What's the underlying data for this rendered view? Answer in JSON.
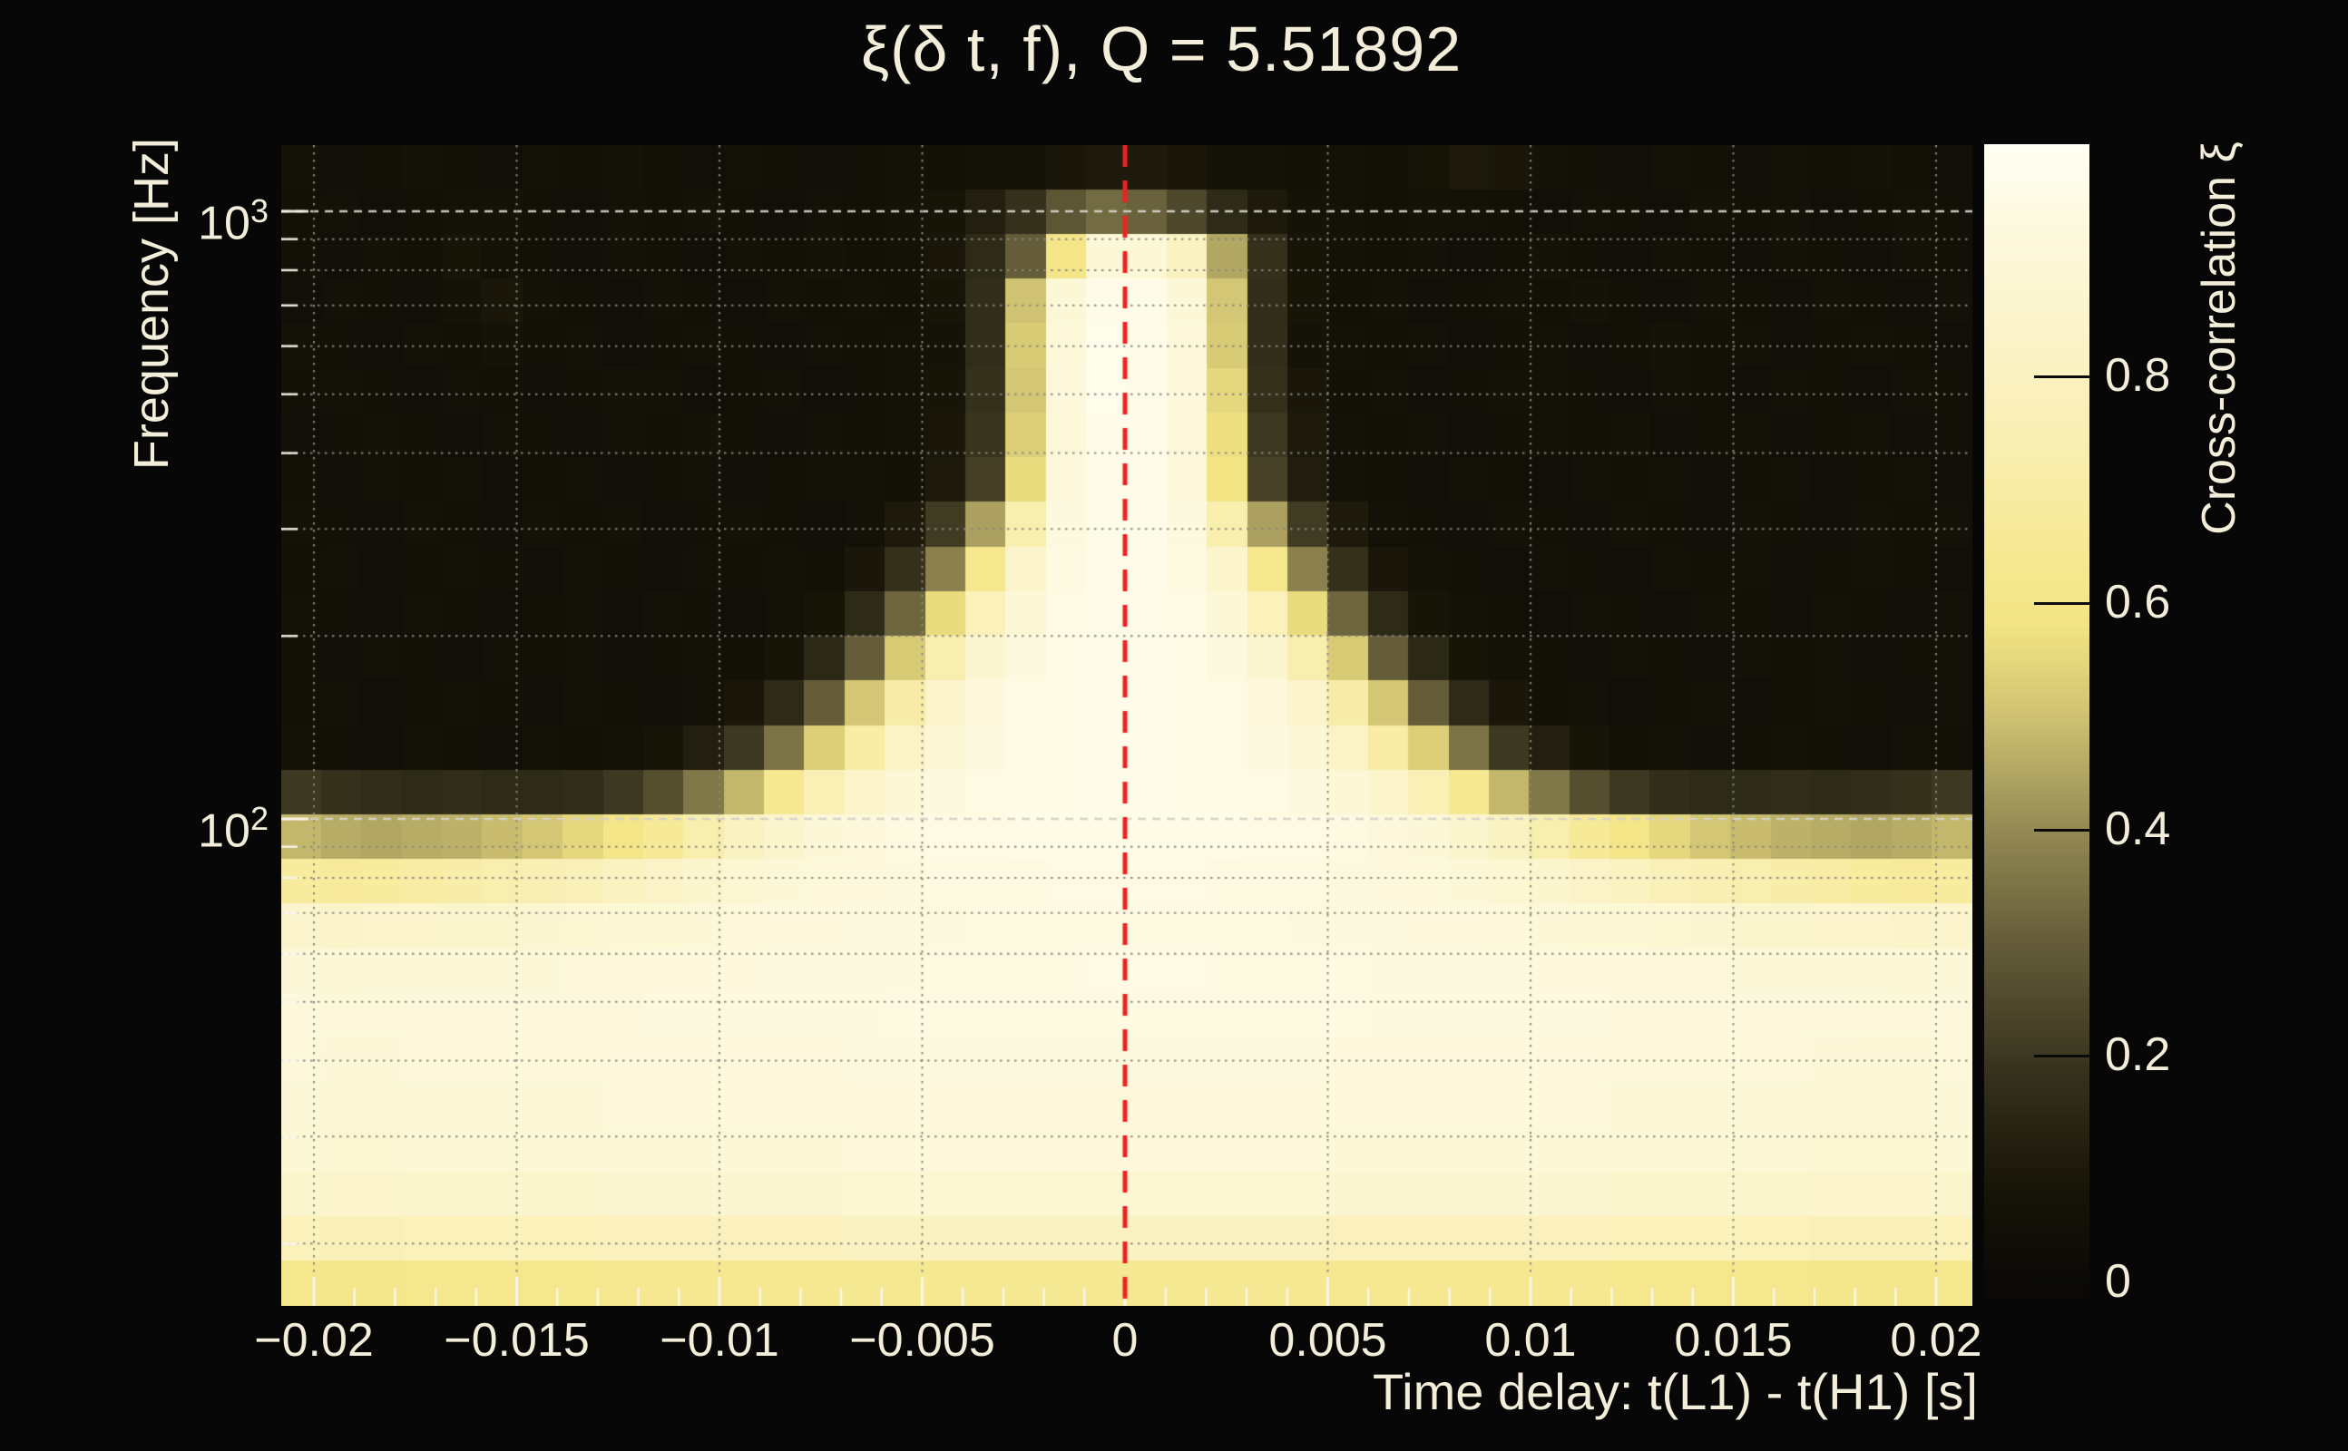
{
  "title": "ξ(δ t, f), Q = 5.51892",
  "style": {
    "background": "#070707",
    "text_color": "#f3eeda",
    "zero_line_color": "#ee2222",
    "grid_minor_color": "rgba(138,136,125,0.95)",
    "grid_major_color": "rgba(212,210,198,0.95)",
    "tick_color": "rgba(250,247,235,0.95)",
    "colorbar_tick_color": "#0a0a08"
  },
  "axes": {
    "x": {
      "title": "Time delay: t(L1) - t(H1) [s]",
      "range": [
        -0.0209,
        0.0209
      ],
      "minor_step": 0.001,
      "major_step": 0.005,
      "ticks": [
        {
          "v": -0.02,
          "label": "−0.02"
        },
        {
          "v": -0.015,
          "label": "−0.015"
        },
        {
          "v": -0.01,
          "label": "−0.01"
        },
        {
          "v": -0.005,
          "label": "−0.005"
        },
        {
          "v": 0,
          "label": "0"
        },
        {
          "v": 0.005,
          "label": "0.005"
        },
        {
          "v": 0.01,
          "label": "0.01"
        },
        {
          "v": 0.015,
          "label": "0.015"
        },
        {
          "v": 0.02,
          "label": "0.02"
        }
      ]
    },
    "y": {
      "title": "Frequency [Hz]",
      "scale": "log",
      "range": [
        15.8,
        1286
      ],
      "ticks": [
        {
          "v": 1000,
          "base": "10",
          "exp": "3"
        },
        {
          "v": 100,
          "base": "10",
          "exp": "2"
        }
      ]
    },
    "z": {
      "title": "Cross-correlation ξ",
      "range": [
        -0.015,
        1.004
      ],
      "ticks": [
        {
          "v": 0.8,
          "label": "0.8"
        },
        {
          "v": 0.6,
          "label": "0.6"
        },
        {
          "v": 0.4,
          "label": "0.4"
        },
        {
          "v": 0.2,
          "label": "0.2"
        },
        {
          "v": 0,
          "label": "0"
        }
      ]
    }
  },
  "chart_data": {
    "type": "heatmap",
    "title": "ξ(δ t, f), Q = 5.51892",
    "Q": 5.51892,
    "xlabel": "Time delay: t(L1) - t(H1) [s]",
    "ylabel": "Frequency [Hz]",
    "zlabel": "Cross-correlation ξ",
    "x_range_s": [
      -0.0209,
      0.0209
    ],
    "y_range_hz": [
      15.8,
      1286
    ],
    "y_scale": "log",
    "z_range": [
      -0.015,
      1.004
    ],
    "zero_line_x": 0,
    "n_cols": 42,
    "n_rows": 26,
    "colormap": [
      [
        0.0,
        "#0a0906"
      ],
      [
        0.08,
        "#171408"
      ],
      [
        0.18,
        "#34301c"
      ],
      [
        0.3,
        "#655d39"
      ],
      [
        0.4,
        "#948a54"
      ],
      [
        0.5,
        "#cfc272"
      ],
      [
        0.58,
        "#f2e483"
      ],
      [
        0.65,
        "#f6e995"
      ],
      [
        0.75,
        "#f9efb4"
      ],
      [
        0.85,
        "#fbf4cc"
      ],
      [
        0.93,
        "#fdf9de"
      ],
      [
        1.0,
        "#fffef2"
      ]
    ],
    "values": [
      [
        0.06,
        0.04,
        0.05,
        0.07,
        0.05,
        0.04,
        0.06,
        0.05,
        0.07,
        0.05,
        0.04,
        0.06,
        0.05,
        0.04,
        0.05,
        0.06,
        0.05,
        0.06,
        0.07,
        0.09,
        0.1,
        0.1,
        0.09,
        0.07,
        0.06,
        0.05,
        0.06,
        0.05,
        0.08,
        0.1,
        0.09,
        0.07,
        0.05,
        0.04,
        0.06,
        0.05,
        0.04,
        0.06,
        0.05,
        0.07,
        0.05,
        0.04
      ],
      [
        0.05,
        0.06,
        0.04,
        0.05,
        0.06,
        0.07,
        0.05,
        0.04,
        0.06,
        0.05,
        0.07,
        0.05,
        0.04,
        0.06,
        0.05,
        0.07,
        0.08,
        0.12,
        0.18,
        0.28,
        0.33,
        0.31,
        0.24,
        0.16,
        0.1,
        0.07,
        0.06,
        0.05,
        0.07,
        0.06,
        0.05,
        0.04,
        0.06,
        0.05,
        0.04,
        0.07,
        0.05,
        0.06,
        0.04,
        0.05,
        0.06,
        0.05
      ],
      [
        0.05,
        0.04,
        0.06,
        0.05,
        0.08,
        0.06,
        0.05,
        0.04,
        0.06,
        0.05,
        0.04,
        0.06,
        0.05,
        0.07,
        0.05,
        0.06,
        0.09,
        0.16,
        0.3,
        0.6,
        0.9,
        0.89,
        0.8,
        0.45,
        0.18,
        0.08,
        0.06,
        0.05,
        0.06,
        0.04,
        0.05,
        0.07,
        0.05,
        0.04,
        0.06,
        0.05,
        0.04,
        0.06,
        0.05,
        0.04,
        0.06,
        0.05
      ],
      [
        0.04,
        0.06,
        0.05,
        0.04,
        0.07,
        0.09,
        0.06,
        0.05,
        0.04,
        0.06,
        0.05,
        0.04,
        0.06,
        0.05,
        0.06,
        0.05,
        0.08,
        0.17,
        0.5,
        0.9,
        0.97,
        0.97,
        0.9,
        0.51,
        0.17,
        0.08,
        0.05,
        0.06,
        0.04,
        0.05,
        0.06,
        0.05,
        0.07,
        0.05,
        0.04,
        0.06,
        0.05,
        0.04,
        0.06,
        0.05,
        0.04,
        0.06
      ],
      [
        0.06,
        0.05,
        0.04,
        0.06,
        0.05,
        0.07,
        0.05,
        0.06,
        0.04,
        0.05,
        0.06,
        0.05,
        0.04,
        0.06,
        0.05,
        0.06,
        0.07,
        0.17,
        0.52,
        0.91,
        0.98,
        0.97,
        0.91,
        0.52,
        0.17,
        0.07,
        0.06,
        0.05,
        0.06,
        0.04,
        0.05,
        0.06,
        0.04,
        0.05,
        0.07,
        0.05,
        0.06,
        0.04,
        0.05,
        0.06,
        0.05,
        0.04
      ],
      [
        0.05,
        0.06,
        0.05,
        0.04,
        0.06,
        0.05,
        0.04,
        0.05,
        0.07,
        0.06,
        0.04,
        0.05,
        0.06,
        0.04,
        0.05,
        0.06,
        0.08,
        0.18,
        0.51,
        0.92,
        0.98,
        0.97,
        0.92,
        0.55,
        0.18,
        0.09,
        0.05,
        0.06,
        0.04,
        0.05,
        0.07,
        0.06,
        0.05,
        0.04,
        0.06,
        0.05,
        0.04,
        0.06,
        0.05,
        0.04,
        0.06,
        0.05
      ],
      [
        0.04,
        0.05,
        0.06,
        0.05,
        0.04,
        0.06,
        0.05,
        0.04,
        0.06,
        0.05,
        0.07,
        0.05,
        0.04,
        0.06,
        0.05,
        0.06,
        0.09,
        0.19,
        0.53,
        0.91,
        0.97,
        0.97,
        0.92,
        0.57,
        0.2,
        0.1,
        0.06,
        0.05,
        0.06,
        0.04,
        0.05,
        0.06,
        0.05,
        0.07,
        0.04,
        0.05,
        0.06,
        0.04,
        0.05,
        0.06,
        0.04,
        0.05
      ],
      [
        0.05,
        0.04,
        0.06,
        0.05,
        0.06,
        0.04,
        0.05,
        0.06,
        0.04,
        0.05,
        0.06,
        0.04,
        0.05,
        0.07,
        0.06,
        0.05,
        0.1,
        0.22,
        0.56,
        0.92,
        0.97,
        0.97,
        0.92,
        0.58,
        0.23,
        0.11,
        0.06,
        0.05,
        0.04,
        0.06,
        0.05,
        0.04,
        0.06,
        0.05,
        0.06,
        0.04,
        0.05,
        0.06,
        0.04,
        0.05,
        0.06,
        0.04
      ],
      [
        0.06,
        0.05,
        0.04,
        0.06,
        0.05,
        0.04,
        0.06,
        0.05,
        0.06,
        0.04,
        0.05,
        0.06,
        0.05,
        0.04,
        0.06,
        0.1,
        0.21,
        0.44,
        0.73,
        0.93,
        0.97,
        0.97,
        0.93,
        0.73,
        0.44,
        0.21,
        0.1,
        0.06,
        0.05,
        0.04,
        0.06,
        0.05,
        0.04,
        0.06,
        0.05,
        0.04,
        0.06,
        0.05,
        0.04,
        0.06,
        0.05,
        0.06
      ],
      [
        0.05,
        0.06,
        0.04,
        0.05,
        0.06,
        0.05,
        0.04,
        0.06,
        0.05,
        0.04,
        0.06,
        0.05,
        0.06,
        0.05,
        0.09,
        0.18,
        0.38,
        0.62,
        0.85,
        0.94,
        0.97,
        0.97,
        0.94,
        0.85,
        0.62,
        0.38,
        0.18,
        0.09,
        0.06,
        0.05,
        0.04,
        0.06,
        0.05,
        0.04,
        0.06,
        0.05,
        0.06,
        0.04,
        0.05,
        0.06,
        0.05,
        0.04
      ],
      [
        0.06,
        0.05,
        0.04,
        0.06,
        0.05,
        0.04,
        0.05,
        0.06,
        0.04,
        0.06,
        0.05,
        0.04,
        0.06,
        0.08,
        0.16,
        0.32,
        0.56,
        0.78,
        0.9,
        0.95,
        0.97,
        0.97,
        0.95,
        0.9,
        0.78,
        0.56,
        0.32,
        0.16,
        0.08,
        0.06,
        0.05,
        0.04,
        0.06,
        0.05,
        0.04,
        0.06,
        0.05,
        0.04,
        0.06,
        0.05,
        0.04,
        0.06
      ],
      [
        0.05,
        0.04,
        0.06,
        0.05,
        0.04,
        0.06,
        0.05,
        0.06,
        0.04,
        0.05,
        0.06,
        0.05,
        0.08,
        0.15,
        0.3,
        0.52,
        0.73,
        0.87,
        0.93,
        0.96,
        0.97,
        0.97,
        0.96,
        0.93,
        0.87,
        0.73,
        0.52,
        0.3,
        0.15,
        0.08,
        0.06,
        0.05,
        0.04,
        0.06,
        0.05,
        0.04,
        0.06,
        0.05,
        0.06,
        0.04,
        0.05,
        0.06
      ],
      [
        0.05,
        0.06,
        0.04,
        0.05,
        0.06,
        0.05,
        0.04,
        0.06,
        0.05,
        0.04,
        0.06,
        0.09,
        0.16,
        0.3,
        0.51,
        0.71,
        0.85,
        0.92,
        0.95,
        0.96,
        0.97,
        0.97,
        0.96,
        0.95,
        0.92,
        0.85,
        0.71,
        0.51,
        0.3,
        0.16,
        0.09,
        0.05,
        0.06,
        0.04,
        0.05,
        0.06,
        0.04,
        0.05,
        0.06,
        0.05,
        0.04,
        0.06
      ],
      [
        0.06,
        0.05,
        0.04,
        0.06,
        0.05,
        0.04,
        0.06,
        0.05,
        0.06,
        0.08,
        0.12,
        0.2,
        0.35,
        0.53,
        0.7,
        0.83,
        0.9,
        0.93,
        0.95,
        0.96,
        0.97,
        0.97,
        0.96,
        0.95,
        0.93,
        0.9,
        0.83,
        0.7,
        0.53,
        0.35,
        0.2,
        0.12,
        0.08,
        0.05,
        0.06,
        0.04,
        0.05,
        0.06,
        0.05,
        0.04,
        0.06,
        0.05
      ],
      [
        0.2,
        0.18,
        0.17,
        0.16,
        0.17,
        0.16,
        0.16,
        0.17,
        0.2,
        0.26,
        0.36,
        0.48,
        0.63,
        0.76,
        0.85,
        0.9,
        0.93,
        0.95,
        0.96,
        0.96,
        0.97,
        0.97,
        0.96,
        0.96,
        0.95,
        0.93,
        0.9,
        0.85,
        0.76,
        0.63,
        0.48,
        0.36,
        0.26,
        0.2,
        0.17,
        0.16,
        0.16,
        0.17,
        0.16,
        0.17,
        0.18,
        0.2
      ],
      [
        0.48,
        0.46,
        0.45,
        0.46,
        0.47,
        0.49,
        0.51,
        0.55,
        0.6,
        0.66,
        0.73,
        0.8,
        0.86,
        0.9,
        0.92,
        0.94,
        0.95,
        0.95,
        0.96,
        0.96,
        0.96,
        0.96,
        0.96,
        0.96,
        0.95,
        0.95,
        0.94,
        0.92,
        0.9,
        0.86,
        0.8,
        0.73,
        0.66,
        0.6,
        0.55,
        0.51,
        0.49,
        0.47,
        0.46,
        0.45,
        0.46,
        0.48
      ],
      [
        0.68,
        0.67,
        0.68,
        0.7,
        0.71,
        0.73,
        0.75,
        0.77,
        0.8,
        0.83,
        0.86,
        0.88,
        0.9,
        0.91,
        0.92,
        0.93,
        0.94,
        0.94,
        0.94,
        0.95,
        0.95,
        0.95,
        0.95,
        0.94,
        0.94,
        0.94,
        0.93,
        0.92,
        0.91,
        0.9,
        0.88,
        0.86,
        0.83,
        0.8,
        0.77,
        0.75,
        0.73,
        0.71,
        0.7,
        0.68,
        0.67,
        0.68
      ],
      [
        0.85,
        0.84,
        0.85,
        0.85,
        0.86,
        0.86,
        0.87,
        0.88,
        0.89,
        0.89,
        0.9,
        0.91,
        0.92,
        0.92,
        0.93,
        0.93,
        0.93,
        0.94,
        0.94,
        0.94,
        0.94,
        0.94,
        0.94,
        0.94,
        0.94,
        0.93,
        0.93,
        0.93,
        0.92,
        0.92,
        0.91,
        0.9,
        0.89,
        0.89,
        0.88,
        0.87,
        0.86,
        0.86,
        0.85,
        0.85,
        0.84,
        0.85
      ],
      [
        0.9,
        0.89,
        0.9,
        0.9,
        0.9,
        0.9,
        0.9,
        0.91,
        0.91,
        0.92,
        0.92,
        0.92,
        0.93,
        0.93,
        0.93,
        0.93,
        0.94,
        0.94,
        0.94,
        0.94,
        0.95,
        0.95,
        0.95,
        0.94,
        0.94,
        0.94,
        0.94,
        0.93,
        0.93,
        0.93,
        0.93,
        0.92,
        0.92,
        0.92,
        0.91,
        0.91,
        0.9,
        0.9,
        0.9,
        0.9,
        0.89,
        0.9
      ],
      [
        0.92,
        0.91,
        0.91,
        0.92,
        0.92,
        0.92,
        0.92,
        0.92,
        0.92,
        0.93,
        0.93,
        0.93,
        0.93,
        0.93,
        0.93,
        0.94,
        0.94,
        0.94,
        0.94,
        0.94,
        0.94,
        0.94,
        0.94,
        0.94,
        0.94,
        0.94,
        0.94,
        0.93,
        0.93,
        0.93,
        0.93,
        0.93,
        0.93,
        0.92,
        0.92,
        0.92,
        0.92,
        0.92,
        0.92,
        0.91,
        0.91,
        0.92
      ],
      [
        0.91,
        0.9,
        0.9,
        0.91,
        0.91,
        0.91,
        0.91,
        0.91,
        0.92,
        0.92,
        0.92,
        0.92,
        0.92,
        0.92,
        0.93,
        0.93,
        0.93,
        0.93,
        0.93,
        0.93,
        0.93,
        0.93,
        0.93,
        0.93,
        0.93,
        0.93,
        0.92,
        0.92,
        0.92,
        0.92,
        0.92,
        0.92,
        0.92,
        0.91,
        0.91,
        0.91,
        0.91,
        0.91,
        0.9,
        0.9,
        0.9,
        0.91
      ],
      [
        0.9,
        0.89,
        0.89,
        0.9,
        0.9,
        0.9,
        0.9,
        0.9,
        0.91,
        0.91,
        0.91,
        0.91,
        0.91,
        0.91,
        0.92,
        0.92,
        0.92,
        0.92,
        0.92,
        0.92,
        0.92,
        0.92,
        0.92,
        0.92,
        0.92,
        0.92,
        0.91,
        0.91,
        0.91,
        0.91,
        0.91,
        0.91,
        0.91,
        0.9,
        0.9,
        0.9,
        0.9,
        0.9,
        0.89,
        0.89,
        0.89,
        0.9
      ],
      [
        0.89,
        0.88,
        0.88,
        0.89,
        0.89,
        0.89,
        0.89,
        0.89,
        0.9,
        0.9,
        0.9,
        0.9,
        0.9,
        0.9,
        0.91,
        0.91,
        0.91,
        0.91,
        0.91,
        0.91,
        0.91,
        0.91,
        0.91,
        0.91,
        0.91,
        0.91,
        0.9,
        0.9,
        0.9,
        0.9,
        0.9,
        0.9,
        0.9,
        0.89,
        0.89,
        0.89,
        0.89,
        0.89,
        0.88,
        0.88,
        0.88,
        0.89
      ],
      [
        0.86,
        0.85,
        0.85,
        0.86,
        0.86,
        0.86,
        0.86,
        0.86,
        0.87,
        0.87,
        0.87,
        0.87,
        0.87,
        0.87,
        0.88,
        0.88,
        0.88,
        0.88,
        0.88,
        0.88,
        0.88,
        0.88,
        0.88,
        0.88,
        0.88,
        0.88,
        0.87,
        0.87,
        0.87,
        0.87,
        0.87,
        0.87,
        0.87,
        0.86,
        0.86,
        0.86,
        0.86,
        0.86,
        0.85,
        0.85,
        0.85,
        0.86
      ],
      [
        0.78,
        0.77,
        0.77,
        0.78,
        0.78,
        0.78,
        0.78,
        0.78,
        0.79,
        0.79,
        0.79,
        0.79,
        0.79,
        0.79,
        0.8,
        0.8,
        0.8,
        0.8,
        0.8,
        0.8,
        0.8,
        0.8,
        0.8,
        0.8,
        0.8,
        0.8,
        0.79,
        0.79,
        0.79,
        0.79,
        0.79,
        0.79,
        0.79,
        0.78,
        0.78,
        0.78,
        0.78,
        0.78,
        0.77,
        0.77,
        0.77,
        0.78
      ],
      [
        0.62,
        0.61,
        0.61,
        0.62,
        0.62,
        0.62,
        0.62,
        0.62,
        0.63,
        0.63,
        0.63,
        0.63,
        0.63,
        0.63,
        0.64,
        0.64,
        0.64,
        0.64,
        0.64,
        0.64,
        0.64,
        0.64,
        0.64,
        0.64,
        0.64,
        0.64,
        0.63,
        0.63,
        0.63,
        0.63,
        0.63,
        0.63,
        0.63,
        0.62,
        0.62,
        0.62,
        0.62,
        0.62,
        0.61,
        0.61,
        0.61,
        0.62
      ]
    ]
  }
}
